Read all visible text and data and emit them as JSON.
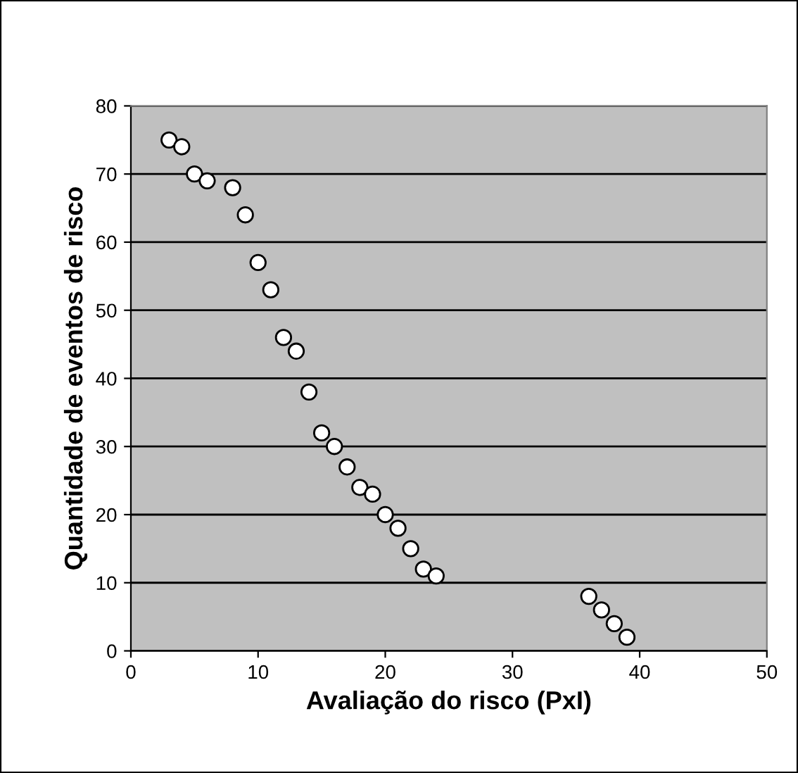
{
  "chart_data": {
    "type": "scatter",
    "xlabel": "Avaliação do risco (PxI)",
    "ylabel": "Quantidade de eventos de risco",
    "x": [
      3,
      4,
      5,
      6,
      8,
      9,
      10,
      11,
      12,
      13,
      14,
      15,
      16,
      17,
      18,
      19,
      20,
      21,
      22,
      23,
      24,
      36,
      37,
      38,
      39
    ],
    "series": [
      {
        "color": "#ffffff",
        "values": [
          75,
          74,
          70,
          69,
          68,
          64,
          57,
          53,
          46,
          44,
          38,
          32,
          30,
          27,
          24,
          23,
          20,
          18,
          15,
          12,
          11,
          8,
          6,
          4,
          2
        ]
      }
    ],
    "xlim": [
      0,
      50
    ],
    "xticks": [
      0,
      10,
      20,
      30,
      40,
      50
    ],
    "ylim": [
      0,
      80
    ],
    "yticks": [
      0,
      10,
      20,
      30,
      40,
      50,
      60,
      70,
      80
    ],
    "grid": "y",
    "marker": "circle"
  }
}
